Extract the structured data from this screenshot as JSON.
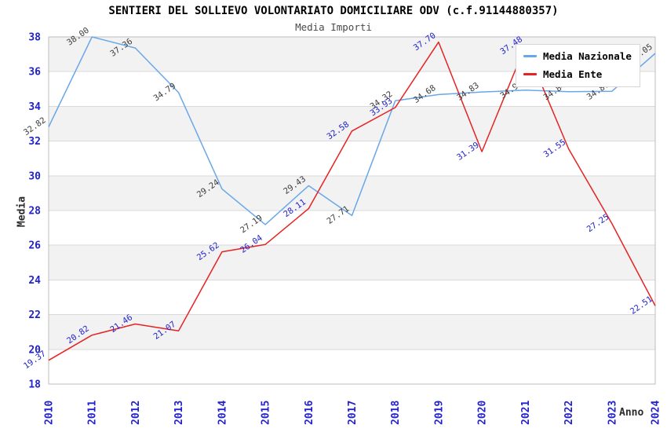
{
  "chart_data": {
    "type": "line",
    "title": "SENTIERI DEL SOLLIEVO VOLONTARIATO DOMICILIARE ODV (c.f.91144880357)",
    "subtitle": "Media Importi",
    "xlabel": "Anno",
    "ylabel": "Media",
    "ylim": [
      18,
      38
    ],
    "ytick_step": 2,
    "yticks": [
      18,
      20,
      22,
      24,
      26,
      28,
      30,
      32,
      34,
      36,
      38
    ],
    "categories": [
      "2010",
      "2011",
      "2012",
      "2013",
      "2014",
      "2015",
      "2016",
      "2017",
      "2018",
      "2019",
      "2020",
      "2021",
      "2022",
      "2023",
      "2024"
    ],
    "series": [
      {
        "name": "Media Nazionale",
        "color": "#6aa7e8",
        "label_color": "#3c3c3c",
        "values": [
          32.82,
          38.0,
          37.36,
          34.79,
          29.24,
          27.19,
          29.43,
          27.71,
          34.32,
          34.68,
          34.83,
          34.93,
          34.84,
          34.87,
          37.05
        ],
        "labels": [
          "32.82",
          "38.00",
          "37.36",
          "34.79",
          "29.24",
          "27.19",
          "29.43",
          "27.71",
          "34.32",
          "34.68",
          "34.83",
          "34.93",
          "34.84",
          "34.87",
          "37.05"
        ]
      },
      {
        "name": "Media Ente",
        "color": "#e62222",
        "label_color": "#2222cc",
        "values": [
          19.37,
          20.82,
          21.46,
          21.07,
          25.62,
          26.04,
          28.11,
          32.58,
          33.93,
          37.7,
          31.39,
          37.48,
          31.55,
          27.25,
          22.51
        ],
        "labels": [
          "19.37",
          "20.82",
          "21.46",
          "21.07",
          "25.62",
          "26.04",
          "28.11",
          "32.58",
          "33.93",
          "37.70",
          "31.39",
          "37.48",
          "31.55",
          "27.25",
          "22.51"
        ]
      }
    ],
    "legend": {
      "position": "top-right",
      "items": [
        "Media Nazionale",
        "Media Ente"
      ]
    },
    "grid": "horizontal",
    "band_color": "#f2f2f2",
    "grid_color": "#d9d9d9",
    "border_color": "#bdbdbd",
    "tick_color": "#2222cc",
    "axis_title_color": "#2b2b2b"
  }
}
